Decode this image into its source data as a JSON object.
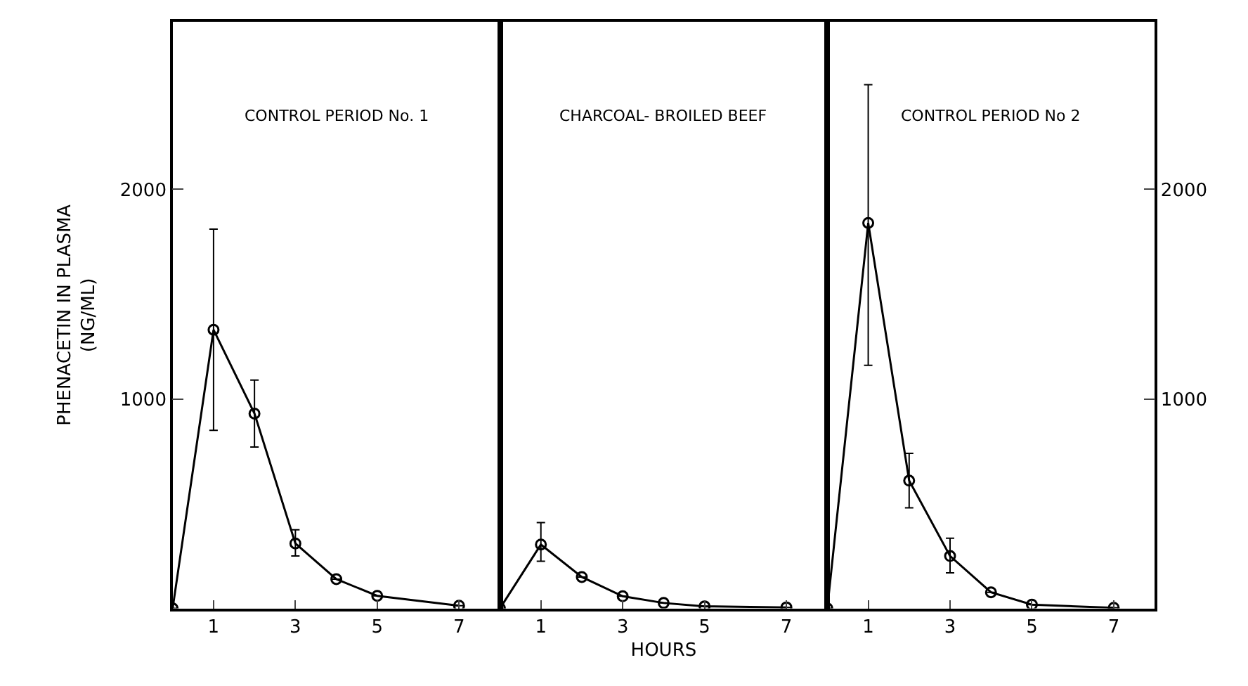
{
  "chart_data": [
    {
      "type": "line",
      "title": "CONTROL PERIOD No. 1",
      "ylabel": "PHENACETIN IN PLASMA\n(NG/ML)",
      "x": [
        0,
        1,
        2,
        3,
        4,
        5,
        7
      ],
      "xlim": [
        0,
        8
      ],
      "xticks": [
        1,
        3,
        5,
        7
      ],
      "ylim": [
        0,
        2800
      ],
      "yticks": [
        1000,
        2000
      ],
      "marker": "circle",
      "grid": false,
      "series": [
        {
          "color": "#000000",
          "values": [
            0,
            1330,
            930,
            310,
            140,
            60,
            13
          ],
          "errors": [
            null,
            [
              850,
              1810
            ],
            [
              770,
              1090
            ],
            [
              250,
              375
            ],
            null,
            null,
            null
          ]
        }
      ]
    },
    {
      "type": "line",
      "title": "CHARCOAL- BROILED BEEF",
      "xlabel": "HOURS",
      "x": [
        0,
        1,
        2,
        3,
        4,
        5,
        7
      ],
      "xlim": [
        0,
        8
      ],
      "xticks": [
        1,
        3,
        5,
        7
      ],
      "ylim": [
        0,
        2800
      ],
      "tick_labels": "x",
      "marker": "circle",
      "grid": false,
      "series": [
        {
          "color": "#000000",
          "values": [
            0,
            305,
            150,
            58,
            26,
            10,
            5
          ],
          "errors": [
            null,
            [
              225,
              410
            ],
            null,
            null,
            null,
            null,
            null
          ]
        }
      ]
    },
    {
      "type": "line",
      "title": "CONTROL PERIOD No 2",
      "x": [
        0,
        1,
        2,
        3,
        4,
        5,
        7
      ],
      "xlim": [
        0,
        8
      ],
      "xticks": [
        1,
        3,
        5,
        7
      ],
      "y2lim": [
        0,
        2800
      ],
      "y2ticks": [
        1000,
        2000
      ],
      "marker": "circle",
      "grid": false,
      "series": [
        {
          "color": "#000000",
          "axis": "y2",
          "values": [
            0,
            1840,
            610,
            250,
            77,
            18,
            3
          ],
          "errors": [
            null,
            [
              1160,
              2500
            ],
            [
              480,
              740
            ],
            [
              170,
              335
            ],
            null,
            null,
            null
          ]
        }
      ]
    }
  ]
}
